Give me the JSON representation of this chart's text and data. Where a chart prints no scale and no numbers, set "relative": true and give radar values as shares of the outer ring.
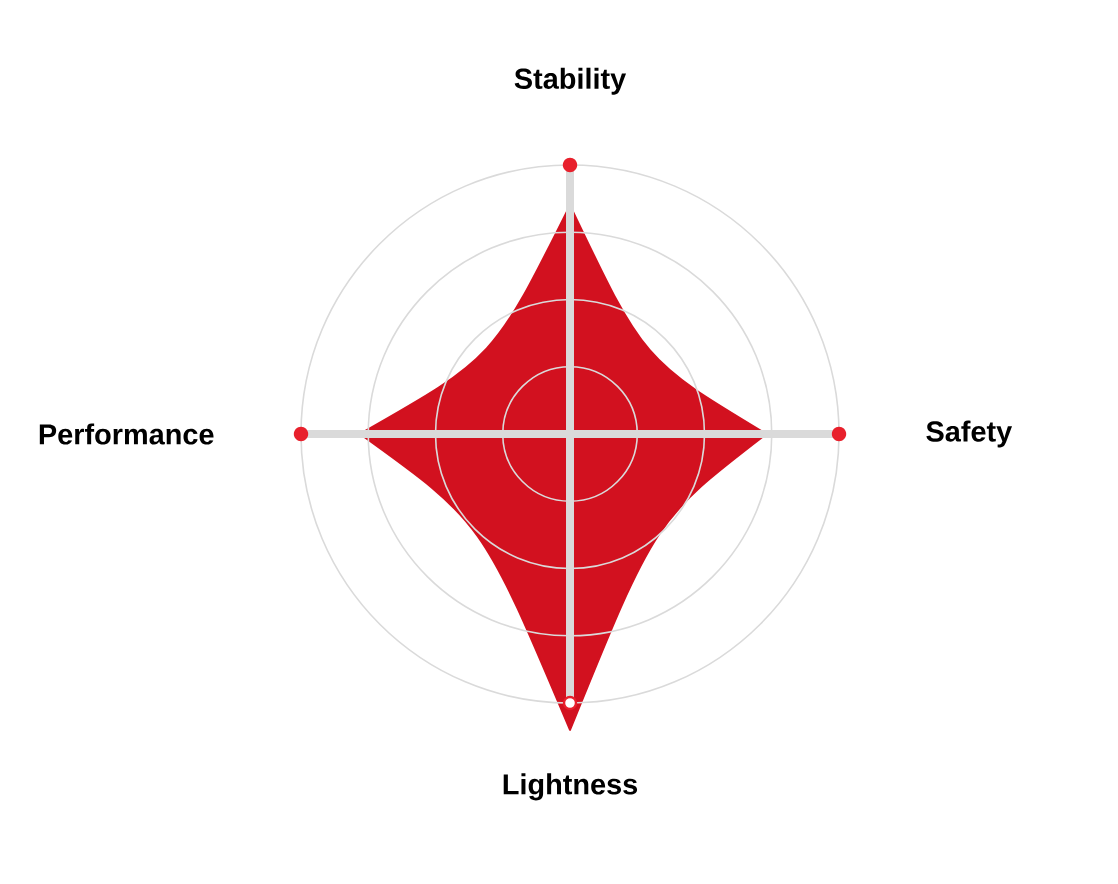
{
  "chart_data": {
    "type": "radar",
    "categories": [
      "Stability",
      "Safety",
      "Lightness",
      "Performance"
    ],
    "relative": true,
    "series": [
      {
        "color": "#d2111f",
        "values": [
          0.85,
          0.73,
          1.1,
          0.78
        ]
      }
    ],
    "grid": true
  }
}
